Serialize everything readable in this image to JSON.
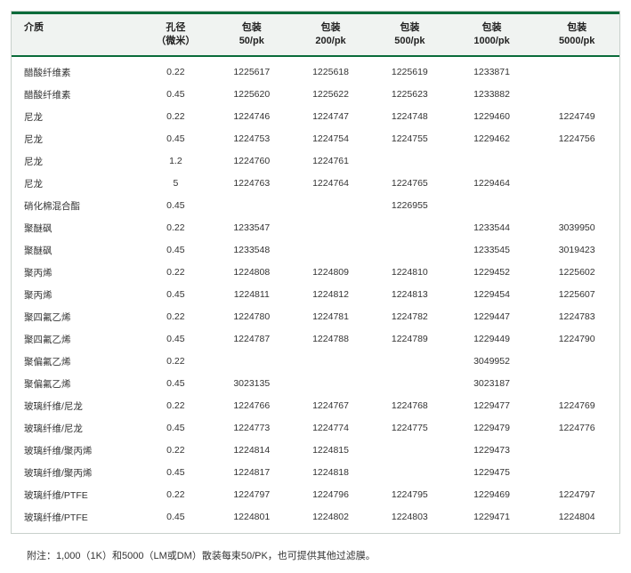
{
  "table": {
    "header_bg": "#f0f3f1",
    "header_border_color": "#0a6b3a",
    "outer_border_color": "#c8d0cb",
    "text_color": "#333333",
    "columns": [
      {
        "label_line1": "介质",
        "label_line2": ""
      },
      {
        "label_line1": "孔径",
        "label_line2": "（微米）"
      },
      {
        "label_line1": "包装",
        "label_line2": "50/pk"
      },
      {
        "label_line1": "包装",
        "label_line2": "200/pk"
      },
      {
        "label_line1": "包装",
        "label_line2": "500/pk"
      },
      {
        "label_line1": "包装",
        "label_line2": "1000/pk"
      },
      {
        "label_line1": "包装",
        "label_line2": "5000/pk"
      }
    ],
    "rows": [
      [
        "醋酸纤维素",
        "0.22",
        "1225617",
        "1225618",
        "1225619",
        "1233871",
        ""
      ],
      [
        "醋酸纤维素",
        "0.45",
        "1225620",
        "1225622",
        "1225623",
        "1233882",
        ""
      ],
      [
        "尼龙",
        "0.22",
        "1224746",
        "1224747",
        "1224748",
        "1229460",
        "1224749"
      ],
      [
        "尼龙",
        "0.45",
        "1224753",
        "1224754",
        "1224755",
        "1229462",
        "1224756"
      ],
      [
        "尼龙",
        "1.2",
        "1224760",
        "1224761",
        "",
        "",
        ""
      ],
      [
        "尼龙",
        "5",
        "1224763",
        "1224764",
        "1224765",
        "1229464",
        ""
      ],
      [
        "硝化棉混合酯",
        "0.45",
        "",
        "",
        "1226955",
        "",
        ""
      ],
      [
        "聚醚砜",
        "0.22",
        "1233547",
        "",
        "",
        "1233544",
        "3039950"
      ],
      [
        "聚醚砜",
        "0.45",
        "1233548",
        "",
        "",
        "1233545",
        "3019423"
      ],
      [
        "聚丙烯",
        "0.22",
        "1224808",
        "1224809",
        "1224810",
        "1229452",
        "1225602"
      ],
      [
        "聚丙烯",
        "0.45",
        "1224811",
        "1224812",
        "1224813",
        "1229454",
        "1225607"
      ],
      [
        "聚四氟乙烯",
        "0.22",
        "1224780",
        "1224781",
        "1224782",
        "1229447",
        "1224783"
      ],
      [
        "聚四氟乙烯",
        "0.45",
        "1224787",
        "1224788",
        "1224789",
        "1229449",
        "1224790"
      ],
      [
        "聚偏氟乙烯",
        "0.22",
        "",
        "",
        "",
        "3049952",
        ""
      ],
      [
        "聚偏氟乙烯",
        "0.45",
        "3023135",
        "",
        "",
        "3023187",
        ""
      ],
      [
        "玻璃纤维/尼龙",
        "0.22",
        "1224766",
        "1224767",
        "1224768",
        "1229477",
        "1224769"
      ],
      [
        "玻璃纤维/尼龙",
        "0.45",
        "1224773",
        "1224774",
        "1224775",
        "1229479",
        "1224776"
      ],
      [
        "玻璃纤维/聚丙烯",
        "0.22",
        "1224814",
        "1224815",
        "",
        "1229473",
        ""
      ],
      [
        "玻璃纤维/聚丙烯",
        "0.45",
        "1224817",
        "1224818",
        "",
        "1229475",
        ""
      ],
      [
        "玻璃纤维/PTFE",
        "0.22",
        "1224797",
        "1224796",
        "1224795",
        "1229469",
        "1224797"
      ],
      [
        "玻璃纤维/PTFE",
        "0.45",
        "1224801",
        "1224802",
        "1224803",
        "1229471",
        "1224804"
      ]
    ]
  },
  "footnote": "附注：1,000（1K）和5000（LM或DM）散装每束50/PK，也可提供其他过滤膜。"
}
